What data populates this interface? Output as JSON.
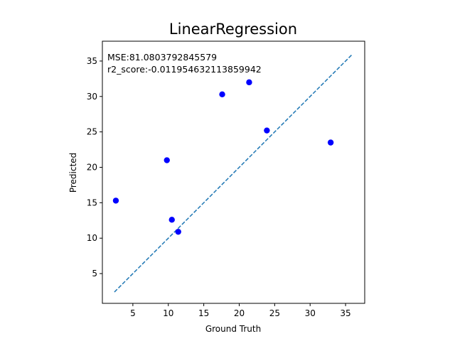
{
  "chart_data": {
    "type": "scatter",
    "title": "LinearRegression",
    "xlabel": "Ground Truth",
    "ylabel": "Predicted",
    "xlim": [
      0.7,
      37.7
    ],
    "ylim": [
      0.8,
      37.8
    ],
    "xticks": [
      5,
      10,
      15,
      20,
      25,
      30,
      35
    ],
    "yticks": [
      5,
      10,
      15,
      20,
      25,
      30,
      35
    ],
    "grid": false,
    "points": [
      {
        "x": 2.6,
        "y": 15.3
      },
      {
        "x": 9.8,
        "y": 21.0
      },
      {
        "x": 10.5,
        "y": 12.6
      },
      {
        "x": 11.4,
        "y": 10.9
      },
      {
        "x": 17.6,
        "y": 30.3
      },
      {
        "x": 21.4,
        "y": 32.0
      },
      {
        "x": 23.9,
        "y": 25.2
      },
      {
        "x": 32.9,
        "y": 23.5
      }
    ],
    "point_color": "#0000ff",
    "reference_line": {
      "x": [
        2.4,
        36.0
      ],
      "y": [
        2.4,
        36.0
      ],
      "style": "dashed",
      "color": "#1f77b4"
    },
    "annotations": [
      "MSE:81.0803792845579",
      "r2_score:-0.011954632113859942"
    ]
  }
}
